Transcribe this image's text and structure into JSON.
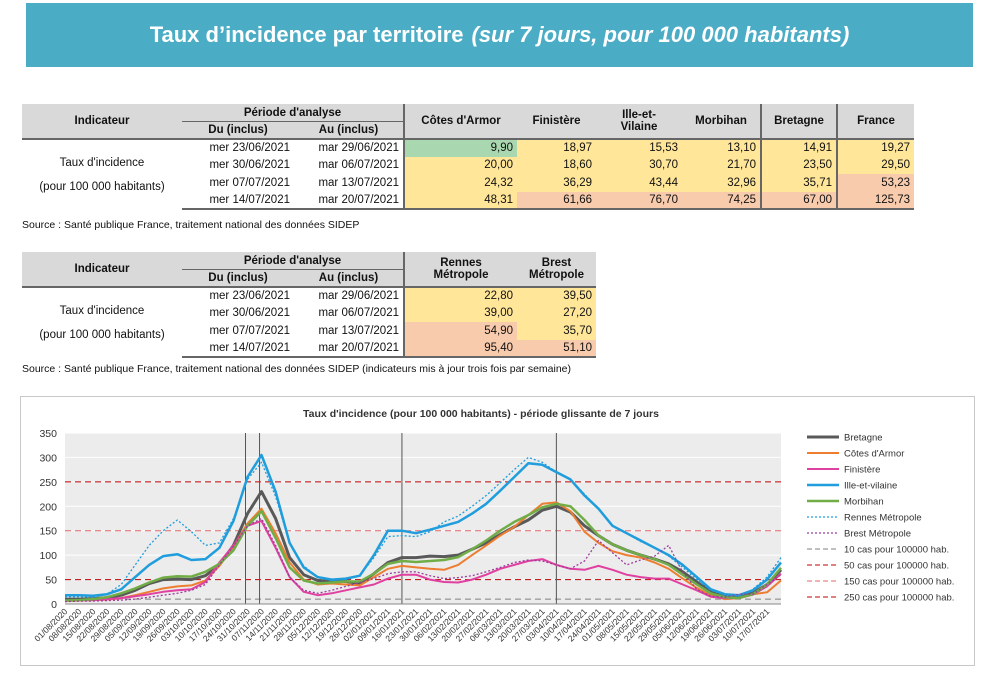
{
  "banner": {
    "title": "Taux d’incidence par territoire",
    "subtitle": "(sur 7 jours, pour 100 000 habitants)"
  },
  "table1": {
    "header_indicator": "Indicateur",
    "header_period": "Période d'analyse",
    "header_du": "Du (inclus)",
    "header_au": "Au (inclus)",
    "columns": [
      "Côtes d'Armor",
      "Finistère",
      "Ille-et-Vilaine",
      "Morbihan",
      "Bretagne",
      "France"
    ],
    "col3_line1": "Ille-et-",
    "col3_line2": "Vilaine",
    "indicator_line1": "Taux d'incidence",
    "indicator_line2": "(pour 100 000 habitants)",
    "rows": [
      {
        "du": "mer 23/06/2021",
        "au": "mar 29/06/2021",
        "values": [
          "9,90",
          "18,97",
          "15,53",
          "13,10",
          "14,91",
          "19,27"
        ]
      },
      {
        "du": "mer 30/06/2021",
        "au": "mar 06/07/2021",
        "values": [
          "20,00",
          "18,60",
          "30,70",
          "21,70",
          "23,50",
          "29,50"
        ]
      },
      {
        "du": "mer 07/07/2021",
        "au": "mar 13/07/2021",
        "values": [
          "24,32",
          "36,29",
          "43,44",
          "32,96",
          "35,71",
          "53,23"
        ]
      },
      {
        "du": "mer 14/07/2021",
        "au": "mar 20/07/2021",
        "values": [
          "48,31",
          "61,66",
          "76,70",
          "74,25",
          "67,00",
          "125,73"
        ]
      }
    ],
    "colors": [
      [
        "#a9d8b0",
        "#ffe699",
        "#ffe699",
        "#ffe699",
        "#ffe699",
        "#ffe699"
      ],
      [
        "#ffe699",
        "#ffe699",
        "#ffe699",
        "#ffe699",
        "#ffe699",
        "#ffe699"
      ],
      [
        "#ffe699",
        "#ffe699",
        "#ffe699",
        "#ffe699",
        "#ffe699",
        "#f8cbad"
      ],
      [
        "#ffe699",
        "#f8cbad",
        "#f8cbad",
        "#f8cbad",
        "#f8cbad",
        "#f8cbad"
      ]
    ],
    "source": "Source  : Santé publique France, traitement national des données SIDEP"
  },
  "table2": {
    "header_indicator": "Indicateur",
    "header_period": "Période d'analyse",
    "header_du": "Du (inclus)",
    "header_au": "Au (inclus)",
    "col1_line1": "Rennes",
    "col1_line2": "Métropole",
    "col2_line1": "Brest",
    "col2_line2": "Métropole",
    "indicator_line1": "Taux d'incidence",
    "indicator_line2": "(pour 100 000 habitants)",
    "rows": [
      {
        "du": "mer 23/06/2021",
        "au": "mar 29/06/2021",
        "values": [
          "22,80",
          "39,50"
        ]
      },
      {
        "du": "mer 30/06/2021",
        "au": "mar 06/07/2021",
        "values": [
          "39,00",
          "27,20"
        ]
      },
      {
        "du": "mer 07/07/2021",
        "au": "mar 13/07/2021",
        "values": [
          "54,90",
          "35,70"
        ]
      },
      {
        "du": "mer 14/07/2021",
        "au": "mar 20/07/2021",
        "values": [
          "95,40",
          "51,10"
        ]
      }
    ],
    "colors": [
      [
        "#ffe699",
        "#ffe699"
      ],
      [
        "#ffe699",
        "#ffe699"
      ],
      [
        "#f8cbad",
        "#ffe699"
      ],
      [
        "#f8cbad",
        "#f8cbad"
      ]
    ],
    "source": "Source  : Santé publique France, traitement national des données SIDEP (indicateurs mis à jour trois fois par semaine)"
  },
  "chart_data": {
    "type": "line",
    "title": "Taux d'incidence (pour 100 000 habitants) - période glissante de 7 jours",
    "ylim": [
      0,
      350
    ],
    "yticks": [
      0,
      50,
      100,
      150,
      200,
      250,
      300,
      350
    ],
    "x_start": "2020-08-01",
    "x_step_days": 7,
    "xticks": [
      "01/08/2020",
      "08/08/2020",
      "15/08/2020",
      "22/08/2020",
      "29/08/2020",
      "05/09/2020",
      "12/09/2020",
      "19/09/2020",
      "26/09/2020",
      "03/10/2020",
      "10/10/2020",
      "17/10/2020",
      "24/10/2020",
      "31/10/2020",
      "07/11/2020",
      "14/11/2020",
      "21/11/2020",
      "28/11/2020",
      "05/12/2020",
      "12/12/2020",
      "19/12/2020",
      "26/12/2020",
      "02/01/2021",
      "09/01/2021",
      "16/01/2021",
      "23/01/2021",
      "30/01/2021",
      "06/02/2021",
      "13/02/2021",
      "20/02/2021",
      "27/02/2021",
      "06/03/2021",
      "13/03/2021",
      "20/03/2021",
      "27/03/2021",
      "03/04/2021",
      "10/04/2021",
      "17/04/2021",
      "24/04/2021",
      "01/05/2021",
      "08/05/2021",
      "15/05/2021",
      "22/05/2021",
      "29/05/2021",
      "05/06/2021",
      "12/06/2021",
      "19/06/2021",
      "26/06/2021",
      "03/07/2021",
      "10/07/2021",
      "17/07/2021"
    ],
    "vlines": [
      "2020-10-30",
      "2020-11-06",
      "2021-01-16",
      "2021-04-03"
    ],
    "reference_lines": [
      {
        "name": "10 cas pour 100000 hab.",
        "value": 10,
        "color": "#808080"
      },
      {
        "name": "50 cas pour 100000 hab.",
        "value": 50,
        "color": "#c00000"
      },
      {
        "name": "150 cas pour 100000 hab.",
        "value": 150,
        "color": "#e06666"
      },
      {
        "name": "250 cas pour 100000 hab.",
        "value": 250,
        "color": "#c00000"
      }
    ],
    "series": [
      {
        "name": "Bretagne",
        "color": "#595959",
        "width": 3,
        "dash": "",
        "values": [
          10,
          10,
          11,
          13,
          18,
          28,
          42,
          50,
          51,
          50,
          58,
          80,
          120,
          185,
          230,
          175,
          95,
          60,
          48,
          46,
          46,
          42,
          62,
          85,
          95,
          95,
          98,
          97,
          100,
          112,
          125,
          142,
          158,
          172,
          192,
          200,
          188,
          160,
          140,
          122,
          110,
          100,
          92,
          82,
          66,
          45,
          26,
          18,
          16,
          23,
          40,
          70
        ]
      },
      {
        "name": "Côtes d'Armor",
        "color": "#ed7d31",
        "width": 2,
        "dash": "",
        "values": [
          6,
          7,
          8,
          9,
          12,
          18,
          25,
          32,
          36,
          38,
          48,
          78,
          118,
          165,
          195,
          145,
          85,
          50,
          40,
          42,
          40,
          38,
          55,
          72,
          78,
          75,
          72,
          70,
          80,
          100,
          120,
          140,
          158,
          182,
          205,
          208,
          190,
          148,
          125,
          108,
          100,
          95,
          85,
          72,
          52,
          33,
          18,
          10,
          12,
          20,
          24,
          48
        ]
      },
      {
        "name": "Finistère",
        "color": "#e040a0",
        "width": 2,
        "dash": "",
        "values": [
          7,
          8,
          8,
          10,
          12,
          16,
          20,
          25,
          28,
          30,
          45,
          85,
          120,
          160,
          170,
          115,
          55,
          25,
          18,
          22,
          28,
          34,
          40,
          52,
          60,
          60,
          50,
          45,
          44,
          50,
          60,
          72,
          80,
          88,
          92,
          80,
          72,
          70,
          78,
          70,
          60,
          55,
          52,
          52,
          40,
          28,
          15,
          12,
          12,
          19,
          36,
          62
        ]
      },
      {
        "name": "Ille-et-vilaine",
        "color": "#1f9ddc",
        "width": 2.5,
        "dash": "",
        "values": [
          18,
          18,
          17,
          20,
          30,
          55,
          80,
          98,
          102,
          90,
          92,
          115,
          170,
          260,
          305,
          230,
          125,
          75,
          55,
          50,
          52,
          58,
          100,
          150,
          150,
          145,
          152,
          160,
          168,
          185,
          205,
          232,
          260,
          288,
          285,
          270,
          255,
          222,
          195,
          160,
          145,
          130,
          115,
          100,
          80,
          55,
          30,
          20,
          18,
          28,
          50,
          85
        ]
      },
      {
        "name": "Morbihan",
        "color": "#70ad47",
        "width": 2.5,
        "dash": "",
        "values": [
          7,
          8,
          10,
          14,
          22,
          32,
          44,
          54,
          57,
          56,
          66,
          82,
          110,
          160,
          190,
          135,
          75,
          48,
          42,
          44,
          46,
          46,
          62,
          82,
          88,
          86,
          88,
          90,
          96,
          112,
          130,
          150,
          168,
          182,
          198,
          205,
          200,
          172,
          140,
          122,
          110,
          100,
          92,
          80,
          60,
          40,
          22,
          14,
          12,
          20,
          40,
          74
        ]
      },
      {
        "name": "Rennes Métropole",
        "color": "#1f9ddc",
        "width": 1.3,
        "dash": "2,2",
        "values": [
          15,
          15,
          14,
          20,
          40,
          80,
          120,
          150,
          172,
          148,
          120,
          125,
          175,
          255,
          290,
          220,
          125,
          78,
          55,
          48,
          50,
          58,
          95,
          138,
          140,
          138,
          148,
          168,
          180,
          200,
          222,
          248,
          275,
          300,
          290,
          270,
          255,
          225,
          195,
          160,
          145,
          128,
          115,
          98,
          75,
          50,
          28,
          18,
          16,
          30,
          55,
          95
        ]
      },
      {
        "name": "Brest Métropole",
        "color": "#9c3f9c",
        "width": 1.3,
        "dash": "2,2",
        "values": [
          5,
          6,
          6,
          7,
          8,
          10,
          14,
          18,
          22,
          28,
          40,
          80,
          118,
          160,
          175,
          120,
          55,
          28,
          22,
          28,
          36,
          44,
          52,
          62,
          66,
          66,
          58,
          52,
          54,
          58,
          66,
          75,
          85,
          90,
          88,
          80,
          72,
          88,
          130,
          105,
          80,
          90,
          98,
          120,
          65,
          30,
          16,
          14,
          20,
          20,
          40,
          60
        ]
      }
    ]
  }
}
